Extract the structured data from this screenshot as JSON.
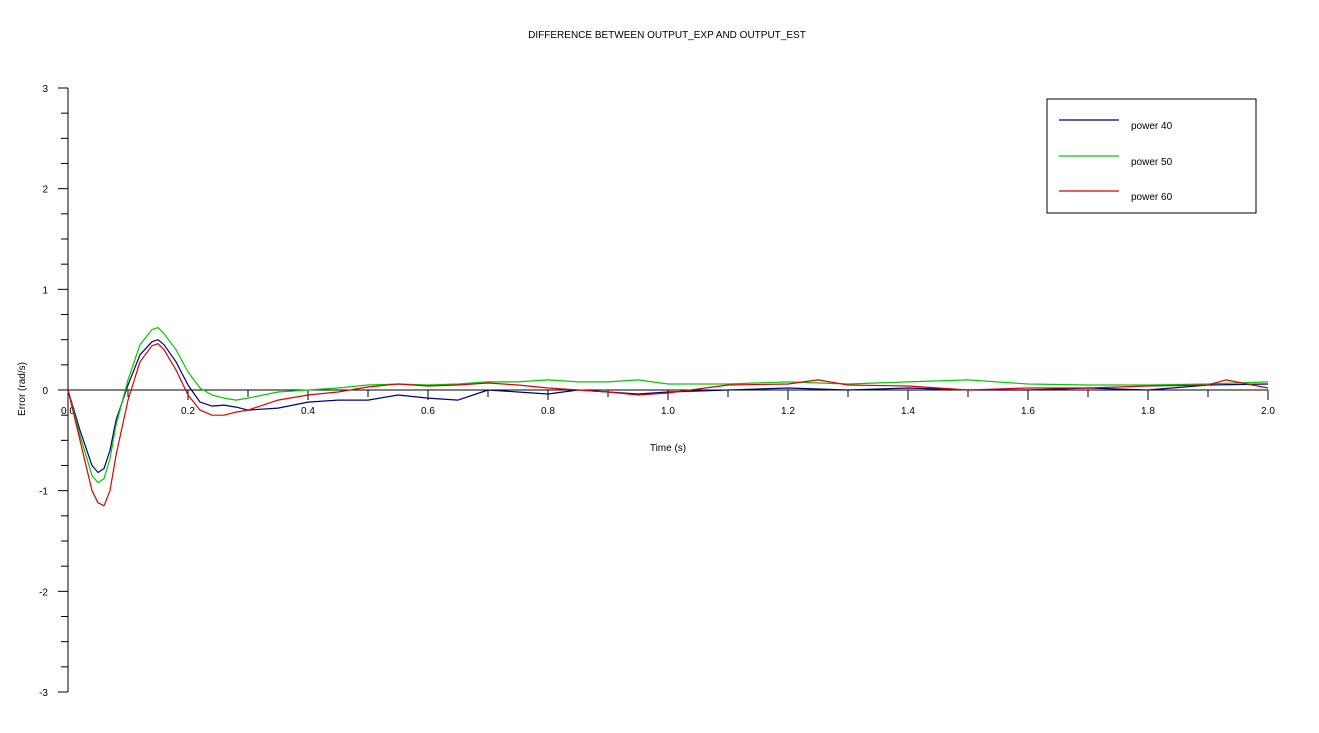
{
  "chart_data": {
    "type": "line",
    "title": "DIFFERENCE BETWEEN OUTPUT_EXP AND OUTPUT_EST",
    "xlabel": "Time (s)",
    "ylabel": "Error (rad/s)",
    "xlim": [
      0,
      2.0
    ],
    "ylim": [
      -3,
      3
    ],
    "x_ticks": [
      "0.0",
      "0.2",
      "0.4",
      "0.6",
      "0.8",
      "1.0",
      "1.2",
      "1.4",
      "1.6",
      "1.8",
      "2.0"
    ],
    "y_ticks": [
      "3",
      "2",
      "1",
      "0",
      "-1",
      "-2",
      "-3"
    ],
    "grid": false,
    "legend_position": "top-right",
    "series": [
      {
        "name": "power 40",
        "color": "#00007f",
        "x": [
          0,
          0.02,
          0.04,
          0.05,
          0.06,
          0.07,
          0.08,
          0.1,
          0.12,
          0.14,
          0.15,
          0.16,
          0.18,
          0.2,
          0.22,
          0.24,
          0.26,
          0.28,
          0.3,
          0.35,
          0.4,
          0.45,
          0.5,
          0.55,
          0.6,
          0.65,
          0.7,
          0.75,
          0.8,
          0.85,
          0.9,
          0.95,
          1.0,
          1.1,
          1.2,
          1.3,
          1.4,
          1.5,
          1.6,
          1.7,
          1.8,
          1.9,
          2.0
        ],
        "values": [
          0,
          -0.4,
          -0.75,
          -0.82,
          -0.78,
          -0.6,
          -0.3,
          0.05,
          0.35,
          0.48,
          0.5,
          0.45,
          0.28,
          0.05,
          -0.12,
          -0.16,
          -0.15,
          -0.17,
          -0.2,
          -0.18,
          -0.12,
          -0.1,
          -0.1,
          -0.05,
          -0.08,
          -0.1,
          0.0,
          -0.02,
          -0.04,
          0.0,
          -0.02,
          -0.04,
          -0.02,
          0.0,
          0.02,
          0.0,
          0.02,
          0.0,
          0.0,
          0.02,
          0.0,
          0.05,
          0.06
        ]
      },
      {
        "name": "power 50",
        "color": "#00cc00",
        "x": [
          0,
          0.02,
          0.04,
          0.05,
          0.06,
          0.07,
          0.08,
          0.1,
          0.12,
          0.14,
          0.15,
          0.16,
          0.18,
          0.2,
          0.22,
          0.24,
          0.26,
          0.28,
          0.3,
          0.35,
          0.4,
          0.45,
          0.5,
          0.55,
          0.6,
          0.65,
          0.7,
          0.75,
          0.8,
          0.85,
          0.9,
          0.95,
          1.0,
          1.1,
          1.2,
          1.3,
          1.4,
          1.5,
          1.6,
          1.7,
          1.8,
          1.9,
          2.0
        ],
        "values": [
          0,
          -0.45,
          -0.85,
          -0.92,
          -0.88,
          -0.68,
          -0.35,
          0.1,
          0.45,
          0.6,
          0.62,
          0.56,
          0.4,
          0.18,
          0.02,
          -0.05,
          -0.08,
          -0.1,
          -0.08,
          -0.02,
          0.0,
          0.02,
          0.05,
          0.06,
          0.05,
          0.06,
          0.08,
          0.08,
          0.1,
          0.08,
          0.08,
          0.1,
          0.06,
          0.06,
          0.08,
          0.06,
          0.08,
          0.1,
          0.06,
          0.05,
          0.05,
          0.06,
          0.08
        ]
      },
      {
        "name": "power 60",
        "color": "#dd0000",
        "x": [
          0,
          0.02,
          0.04,
          0.05,
          0.06,
          0.07,
          0.08,
          0.1,
          0.12,
          0.14,
          0.15,
          0.16,
          0.18,
          0.2,
          0.22,
          0.24,
          0.26,
          0.28,
          0.3,
          0.35,
          0.4,
          0.45,
          0.5,
          0.55,
          0.6,
          0.65,
          0.7,
          0.75,
          0.8,
          0.85,
          0.9,
          0.95,
          1.0,
          1.1,
          1.2,
          1.25,
          1.3,
          1.4,
          1.5,
          1.6,
          1.7,
          1.8,
          1.9,
          1.93,
          2.0
        ],
        "values": [
          0,
          -0.5,
          -1.0,
          -1.12,
          -1.15,
          -1.0,
          -0.65,
          -0.1,
          0.28,
          0.44,
          0.46,
          0.4,
          0.2,
          -0.05,
          -0.2,
          -0.25,
          -0.25,
          -0.22,
          -0.2,
          -0.1,
          -0.05,
          -0.02,
          0.03,
          0.06,
          0.04,
          0.05,
          0.07,
          0.05,
          0.02,
          0.0,
          -0.02,
          -0.05,
          -0.03,
          0.05,
          0.06,
          0.1,
          0.05,
          0.04,
          0.0,
          0.02,
          0.02,
          0.04,
          0.05,
          0.1,
          0.02
        ]
      }
    ]
  }
}
